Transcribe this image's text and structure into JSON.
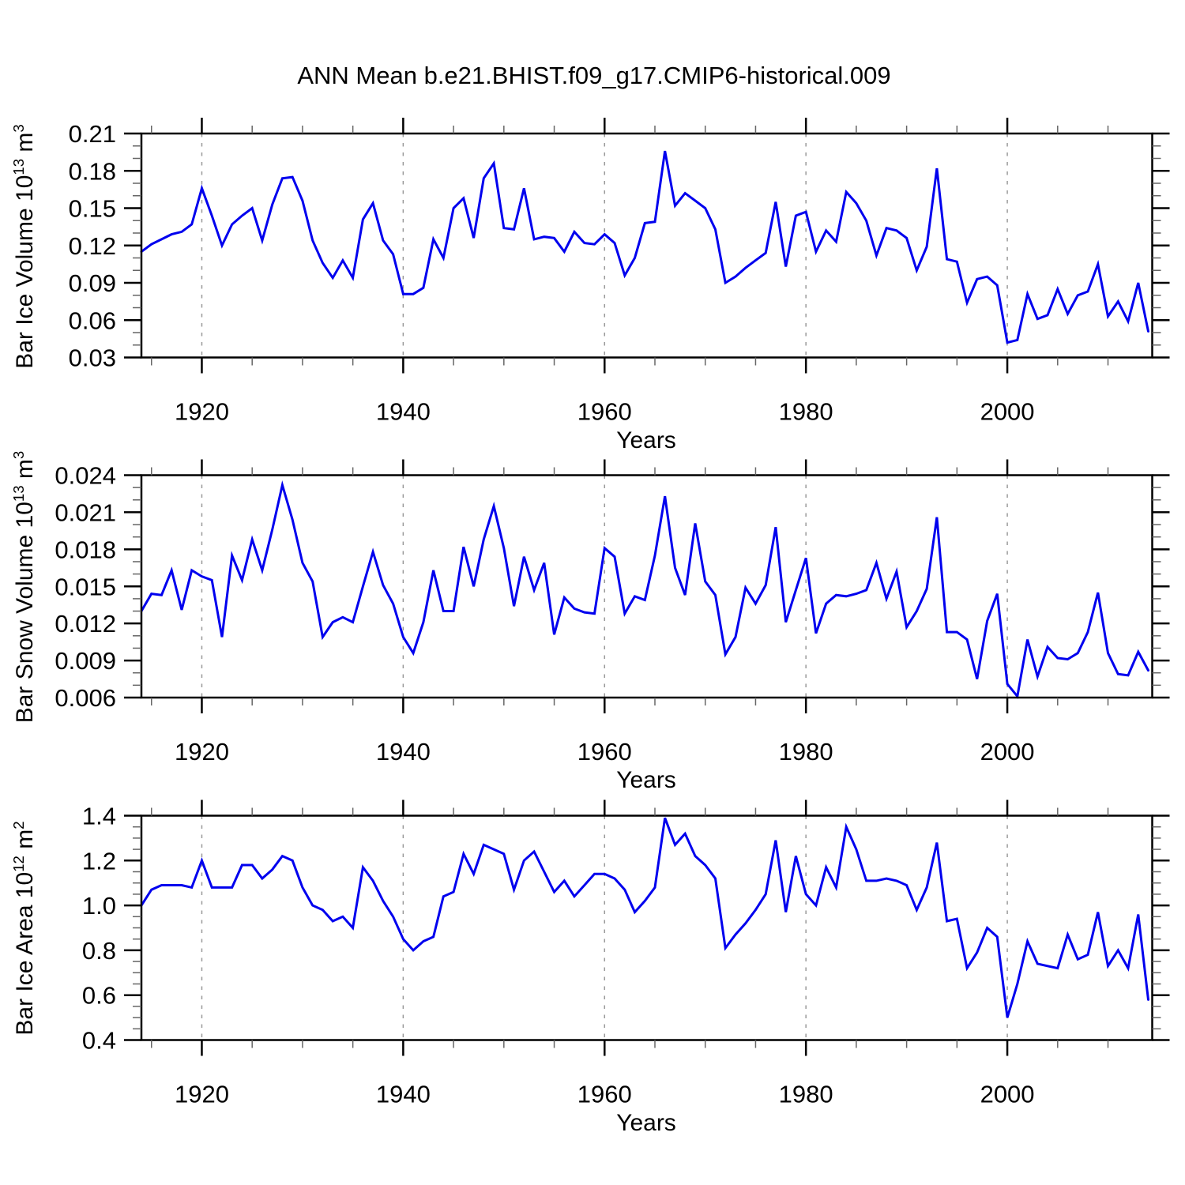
{
  "title": "ANN Mean b.e21.BHIST.f09_g17.CMIP6-historical.009",
  "line_color": "#0000ee",
  "gridline_color": "#999999",
  "frame_color": "#000000",
  "minor_tick_color": "#666666",
  "xticks": [
    1920,
    1940,
    1960,
    1980,
    2000
  ],
  "xtick_labels": [
    "1920",
    "1940",
    "1960",
    "1980",
    "2000"
  ],
  "xminor_step": 5,
  "x_start": 1914,
  "x_end": 2014,
  "chart_data": [
    {
      "type": "line",
      "name": "bar-ice-volume",
      "xlabel": "Years",
      "ylabel": {
        "text1": "Bar Ice Volume 10",
        "sup1": "13",
        "text2": " m",
        "sup2": "3"
      },
      "ylim": [
        0.03,
        0.21
      ],
      "yticks": [
        0.03,
        0.06,
        0.09,
        0.12,
        0.15,
        0.18,
        0.21
      ],
      "ytick_labels": [
        "0.03",
        "0.06",
        "0.09",
        "0.12",
        "0.15",
        "0.18",
        "0.21"
      ],
      "yminor_step": 0.01,
      "grid": "vertical-dashed",
      "legend": "none",
      "values": [
        0.115,
        0.121,
        0.125,
        0.129,
        0.131,
        0.137,
        0.166,
        0.144,
        0.12,
        0.137,
        0.144,
        0.15,
        0.124,
        0.153,
        0.174,
        0.175,
        0.156,
        0.124,
        0.106,
        0.094,
        0.108,
        0.094,
        0.141,
        0.154,
        0.124,
        0.113,
        0.081,
        0.081,
        0.086,
        0.125,
        0.11,
        0.15,
        0.158,
        0.126,
        0.174,
        0.186,
        0.134,
        0.133,
        0.166,
        0.125,
        0.127,
        0.126,
        0.115,
        0.131,
        0.122,
        0.121,
        0.129,
        0.122,
        0.096,
        0.11,
        0.138,
        0.139,
        0.196,
        0.152,
        0.162,
        0.156,
        0.15,
        0.133,
        0.09,
        0.095,
        0.102,
        0.108,
        0.114,
        0.155,
        0.103,
        0.144,
        0.147,
        0.115,
        0.132,
        0.123,
        0.163,
        0.154,
        0.14,
        0.112,
        0.134,
        0.132,
        0.126,
        0.1,
        0.119,
        0.182,
        0.109,
        0.107,
        0.074,
        0.093,
        0.095,
        0.088,
        0.042,
        0.044,
        0.081,
        0.061,
        0.064,
        0.085,
        0.065,
        0.08,
        0.083,
        0.105,
        0.063,
        0.075,
        0.059,
        0.09,
        0.051
      ]
    },
    {
      "type": "line",
      "name": "bar-snow-volume",
      "xlabel": "Years",
      "ylabel": {
        "text1": "Bar Snow Volume 10",
        "sup1": "13",
        "text2": " m",
        "sup2": "3"
      },
      "ylim": [
        0.006,
        0.024
      ],
      "yticks": [
        0.006,
        0.009,
        0.012,
        0.015,
        0.018,
        0.021,
        0.024
      ],
      "ytick_labels": [
        "0.006",
        "0.009",
        "0.012",
        "0.015",
        "0.018",
        "0.021",
        "0.024"
      ],
      "yminor_step": 0.001,
      "grid": "vertical-dashed",
      "legend": "none",
      "values": [
        0.013,
        0.0144,
        0.0143,
        0.0163,
        0.0131,
        0.0163,
        0.0158,
        0.0155,
        0.0109,
        0.0175,
        0.0155,
        0.0188,
        0.0163,
        0.0196,
        0.0232,
        0.0204,
        0.0169,
        0.0154,
        0.0109,
        0.0121,
        0.0125,
        0.0121,
        0.015,
        0.0178,
        0.0151,
        0.0136,
        0.0109,
        0.0096,
        0.0121,
        0.0163,
        0.013,
        0.013,
        0.0182,
        0.015,
        0.0188,
        0.0215,
        0.0181,
        0.0134,
        0.0174,
        0.0147,
        0.0169,
        0.0111,
        0.0141,
        0.0132,
        0.0129,
        0.0128,
        0.0181,
        0.0174,
        0.0128,
        0.0142,
        0.0139,
        0.0175,
        0.0223,
        0.0165,
        0.0143,
        0.0201,
        0.0154,
        0.0143,
        0.0095,
        0.0109,
        0.0149,
        0.0136,
        0.0151,
        0.0198,
        0.0121,
        0.0147,
        0.0173,
        0.0112,
        0.0136,
        0.0143,
        0.0142,
        0.0144,
        0.0147,
        0.0169,
        0.014,
        0.0162,
        0.0117,
        0.013,
        0.0148,
        0.0206,
        0.0113,
        0.0113,
        0.0107,
        0.0075,
        0.0122,
        0.0144,
        0.0071,
        0.0061,
        0.0107,
        0.0077,
        0.0101,
        0.0092,
        0.0091,
        0.0096,
        0.0113,
        0.0145,
        0.0096,
        0.0079,
        0.0078,
        0.0097,
        0.0082
      ]
    },
    {
      "type": "line",
      "name": "bar-ice-area",
      "xlabel": "Years",
      "ylabel": {
        "text1": "Bar Ice Area 10",
        "sup1": "12",
        "text2": " m",
        "sup2": "2"
      },
      "ylim": [
        0.4,
        1.4
      ],
      "yticks": [
        0.4,
        0.6,
        0.8,
        1.0,
        1.2,
        1.4
      ],
      "ytick_labels": [
        "0.4",
        "0.6",
        "0.8",
        "1.0",
        "1.2",
        "1.4"
      ],
      "yminor_step": 0.05,
      "grid": "vertical-dashed",
      "legend": "none",
      "values": [
        1.0,
        1.07,
        1.09,
        1.09,
        1.09,
        1.08,
        1.2,
        1.08,
        1.08,
        1.08,
        1.18,
        1.18,
        1.12,
        1.16,
        1.22,
        1.2,
        1.08,
        1.0,
        0.98,
        0.93,
        0.95,
        0.9,
        1.17,
        1.11,
        1.02,
        0.95,
        0.85,
        0.8,
        0.84,
        0.86,
        1.04,
        1.06,
        1.23,
        1.14,
        1.27,
        1.25,
        1.23,
        1.07,
        1.2,
        1.24,
        1.15,
        1.06,
        1.11,
        1.04,
        1.09,
        1.14,
        1.14,
        1.12,
        1.07,
        0.97,
        1.02,
        1.08,
        1.39,
        1.27,
        1.32,
        1.22,
        1.18,
        1.12,
        0.81,
        0.87,
        0.92,
        0.98,
        1.05,
        1.29,
        0.97,
        1.22,
        1.05,
        1.0,
        1.17,
        1.08,
        1.35,
        1.25,
        1.11,
        1.11,
        1.12,
        1.11,
        1.09,
        0.98,
        1.08,
        1.28,
        0.93,
        0.94,
        0.72,
        0.79,
        0.9,
        0.86,
        0.5,
        0.65,
        0.84,
        0.74,
        0.73,
        0.72,
        0.87,
        0.76,
        0.78,
        0.97,
        0.73,
        0.8,
        0.72,
        0.96,
        0.58
      ]
    }
  ]
}
